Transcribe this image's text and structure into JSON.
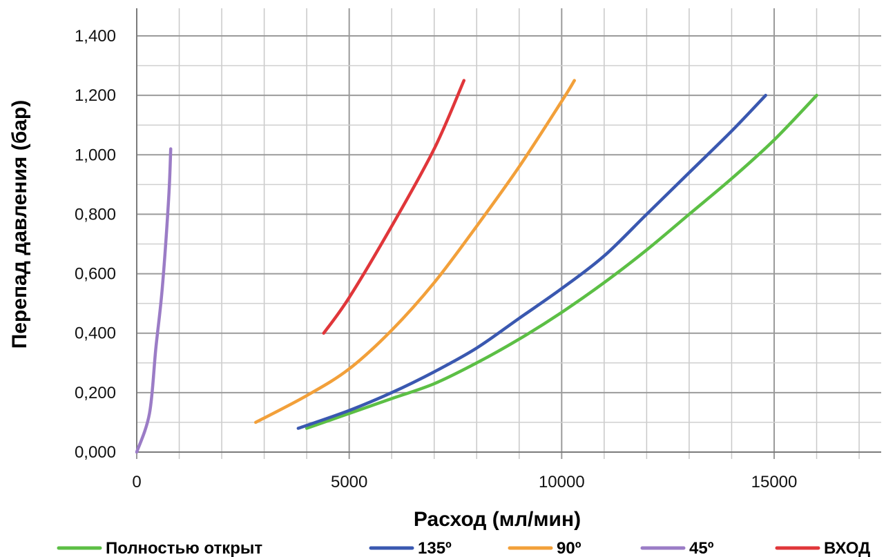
{
  "chart_data": {
    "type": "line",
    "title": "",
    "xlabel": "Расход (мл/мин)",
    "ylabel": "Перепад давления (бар)",
    "xlim": [
      0,
      17000
    ],
    "ylim": [
      0,
      1.4
    ],
    "grid": true,
    "legend_position": "bottom",
    "x_ticks": [
      {
        "value": 0,
        "label": "0"
      },
      {
        "value": 5000,
        "label": "5000"
      },
      {
        "value": 10000,
        "label": "10000"
      },
      {
        "value": 15000,
        "label": "15000"
      }
    ],
    "y_ticks": [
      {
        "value": 0,
        "label": "0,000"
      },
      {
        "value": 0.2,
        "label": "0,200"
      },
      {
        "value": 0.4,
        "label": "0,400"
      },
      {
        "value": 0.6,
        "label": "0,600"
      },
      {
        "value": 0.8,
        "label": "0,800"
      },
      {
        "value": 1.0,
        "label": "1,000"
      },
      {
        "value": 1.2,
        "label": "1,200"
      },
      {
        "value": 1.4,
        "label": "1,400"
      }
    ],
    "series": [
      {
        "name": "Полностью открыт",
        "color": "#5cbf45",
        "x": [
          4000,
          5000,
          6000,
          7000,
          8000,
          9000,
          10000,
          11000,
          12000,
          13000,
          14000,
          15000,
          16000
        ],
        "y": [
          0.08,
          0.13,
          0.18,
          0.23,
          0.3,
          0.38,
          0.47,
          0.57,
          0.68,
          0.8,
          0.92,
          1.05,
          1.2
        ]
      },
      {
        "name": "135º",
        "color": "#3a58b0",
        "x": [
          3800,
          5000,
          6000,
          7000,
          8000,
          9000,
          10000,
          11000,
          12000,
          13000,
          14000,
          14800
        ],
        "y": [
          0.08,
          0.14,
          0.2,
          0.27,
          0.35,
          0.45,
          0.55,
          0.66,
          0.8,
          0.94,
          1.08,
          1.2
        ]
      },
      {
        "name": "90º",
        "color": "#f2a03a",
        "x": [
          2800,
          4000,
          5000,
          6000,
          7000,
          8000,
          9000,
          10000,
          10300
        ],
        "y": [
          0.1,
          0.19,
          0.28,
          0.41,
          0.57,
          0.76,
          0.96,
          1.18,
          1.25
        ]
      },
      {
        "name": "45º",
        "color": "#9b7cc6",
        "x": [
          0,
          300,
          450,
          600,
          750,
          800
        ],
        "y": [
          0.0,
          0.13,
          0.35,
          0.55,
          0.85,
          1.02
        ]
      },
      {
        "name": "ВХОД",
        "color": "#e0363a",
        "x": [
          4400,
          5000,
          6000,
          7000,
          7700
        ],
        "y": [
          0.4,
          0.52,
          0.76,
          1.02,
          1.25
        ]
      }
    ]
  }
}
